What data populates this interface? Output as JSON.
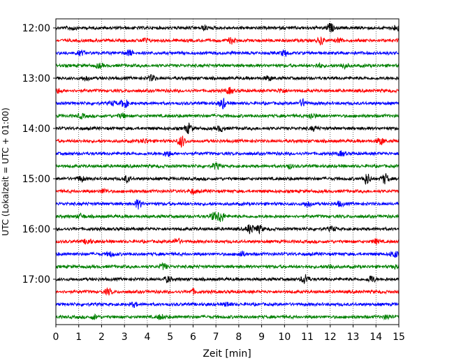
{
  "chart_data": {
    "type": "line",
    "subtype": "helicorder-seismogram",
    "xlabel": "Zeit  [min]",
    "ylabel": "UTC (Lokalzeit = UTC + 01:00)",
    "xlim": [
      0,
      15
    ],
    "x_ticks": [
      0,
      1,
      2,
      3,
      4,
      5,
      6,
      7,
      8,
      9,
      10,
      11,
      12,
      13,
      14,
      15
    ],
    "x_grid": "dotted-vertical",
    "y_ticks": [
      "12:00",
      "13:00",
      "14:00",
      "15:00",
      "16:00",
      "17:00"
    ],
    "line_interval_minutes": 15,
    "color_cycle": [
      "#000000",
      "#ff0000",
      "#0000ff",
      "#008000"
    ],
    "traces": [
      {
        "start": "12:00",
        "events": [
          [
            0.7,
            3
          ],
          [
            6.5,
            3
          ],
          [
            12.0,
            6
          ],
          [
            14.9,
            4
          ]
        ]
      },
      {
        "start": "12:15",
        "events": [
          [
            3.9,
            3
          ],
          [
            7.7,
            4
          ],
          [
            11.6,
            5
          ],
          [
            12.4,
            3
          ]
        ]
      },
      {
        "start": "12:30",
        "events": [
          [
            1.1,
            3
          ],
          [
            3.2,
            4
          ],
          [
            10.0,
            4
          ]
        ]
      },
      {
        "start": "12:45",
        "events": [
          [
            1.9,
            3
          ],
          [
            11.5,
            3
          ],
          [
            12.6,
            4
          ]
        ]
      },
      {
        "start": "13:00",
        "events": [
          [
            1.3,
            3
          ],
          [
            4.2,
            4
          ],
          [
            9.3,
            3
          ]
        ]
      },
      {
        "start": "13:15",
        "events": [
          [
            0.1,
            3
          ],
          [
            7.6,
            4
          ],
          [
            9.9,
            3
          ]
        ]
      },
      {
        "start": "13:30",
        "events": [
          [
            2.5,
            3
          ],
          [
            3.0,
            6
          ],
          [
            7.3,
            7
          ],
          [
            10.8,
            5
          ]
        ]
      },
      {
        "start": "13:45",
        "events": [
          [
            1.1,
            3
          ],
          [
            2.9,
            3
          ],
          [
            11.2,
            4
          ]
        ]
      },
      {
        "start": "14:00",
        "events": [
          [
            5.8,
            7
          ],
          [
            7.2,
            4
          ],
          [
            11.3,
            3
          ]
        ]
      },
      {
        "start": "14:15",
        "events": [
          [
            5.5,
            8
          ],
          [
            3.9,
            3
          ],
          [
            14.2,
            5
          ]
        ]
      },
      {
        "start": "14:30",
        "events": [
          [
            4.9,
            4
          ],
          [
            12.5,
            3
          ]
        ]
      },
      {
        "start": "14:45",
        "events": [
          [
            7.0,
            4
          ],
          [
            10.2,
            3
          ]
        ]
      },
      {
        "start": "15:00",
        "events": [
          [
            1.1,
            4
          ],
          [
            3.1,
            4
          ],
          [
            13.6,
            8
          ],
          [
            14.4,
            7
          ]
        ]
      },
      {
        "start": "15:15",
        "events": [
          [
            2.1,
            3
          ],
          [
            6.0,
            3
          ]
        ]
      },
      {
        "start": "15:30",
        "events": [
          [
            3.6,
            6
          ],
          [
            11.0,
            4
          ],
          [
            12.4,
            3
          ]
        ]
      },
      {
        "start": "15:45",
        "events": [
          [
            7.2,
            8
          ],
          [
            6.9,
            5
          ],
          [
            1.1,
            3
          ]
        ]
      },
      {
        "start": "16:00",
        "events": [
          [
            8.5,
            7
          ],
          [
            8.9,
            5
          ],
          [
            12.1,
            3
          ]
        ]
      },
      {
        "start": "16:15",
        "events": [
          [
            1.4,
            4
          ],
          [
            5.3,
            4
          ],
          [
            14.0,
            3
          ]
        ]
      },
      {
        "start": "16:30",
        "events": [
          [
            2.4,
            3
          ],
          [
            8.1,
            4
          ],
          [
            14.8,
            5
          ]
        ]
      },
      {
        "start": "16:45",
        "events": [
          [
            4.7,
            4
          ],
          [
            12.0,
            3
          ],
          [
            14.9,
            3
          ]
        ]
      },
      {
        "start": "17:00",
        "events": [
          [
            4.9,
            4
          ],
          [
            10.9,
            7
          ],
          [
            13.8,
            5
          ]
        ]
      },
      {
        "start": "17:15",
        "events": [
          [
            2.3,
            4
          ],
          [
            6.0,
            3
          ]
        ]
      },
      {
        "start": "17:30",
        "events": [
          [
            3.4,
            3
          ],
          [
            7.5,
            3
          ]
        ]
      },
      {
        "start": "17:45",
        "events": [
          [
            1.7,
            3
          ],
          [
            4.6,
            3
          ],
          [
            14.5,
            3
          ]
        ]
      }
    ]
  }
}
